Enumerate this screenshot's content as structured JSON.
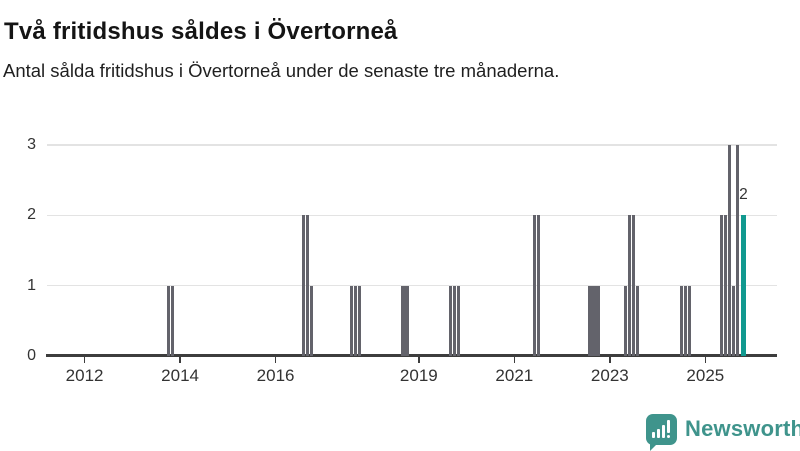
{
  "header": {
    "title": "Två fritidshus såldes i Övertorneå",
    "subtitle": "Antal sålda fritidshus i Övertorneå under de senaste tre månaderna."
  },
  "chart_data": {
    "type": "bar",
    "title": "Två fritidshus såldes i Övertorneå",
    "subtitle": "Antal sålda fritidshus i Övertorneå under de senaste tre månaderna.",
    "xlabel": "",
    "ylabel": "",
    "x_unit": "month",
    "x_domain": [
      "2011-04",
      "2026-06"
    ],
    "ylim": [
      0,
      3
    ],
    "yticks": [
      0,
      1,
      2,
      3
    ],
    "xticks": [
      "2012",
      "2014",
      "2016",
      "2019",
      "2021",
      "2023",
      "2025"
    ],
    "grid": true,
    "legend": false,
    "points": [
      {
        "month": "2013-10",
        "value": 1
      },
      {
        "month": "2013-11",
        "value": 1
      },
      {
        "month": "2016-08",
        "value": 2
      },
      {
        "month": "2016-09",
        "value": 2
      },
      {
        "month": "2016-10",
        "value": 1
      },
      {
        "month": "2017-08",
        "value": 1
      },
      {
        "month": "2017-09",
        "value": 1
      },
      {
        "month": "2017-10",
        "value": 1
      },
      {
        "month": "2018-09",
        "value": 1
      },
      {
        "month": "2018-10",
        "value": 1
      },
      {
        "month": "2019-09",
        "value": 1
      },
      {
        "month": "2019-10",
        "value": 1
      },
      {
        "month": "2019-11",
        "value": 1
      },
      {
        "month": "2021-06",
        "value": 2
      },
      {
        "month": "2021-07",
        "value": 2
      },
      {
        "month": "2022-08",
        "value": 1
      },
      {
        "month": "2022-09",
        "value": 1
      },
      {
        "month": "2022-10",
        "value": 1
      },
      {
        "month": "2023-05",
        "value": 1
      },
      {
        "month": "2023-06",
        "value": 2
      },
      {
        "month": "2023-07",
        "value": 2
      },
      {
        "month": "2023-08",
        "value": 1
      },
      {
        "month": "2024-07",
        "value": 1
      },
      {
        "month": "2024-08",
        "value": 1
      },
      {
        "month": "2024-09",
        "value": 1
      },
      {
        "month": "2025-05",
        "value": 2
      },
      {
        "month": "2025-06",
        "value": 2
      },
      {
        "month": "2025-07",
        "value": 3
      },
      {
        "month": "2025-08",
        "value": 1
      },
      {
        "month": "2025-09",
        "value": 3
      },
      {
        "month": "2025-10",
        "value": 2
      }
    ],
    "highlight_month": "2025-10",
    "annotation": {
      "text": "2"
    },
    "colors": {
      "bar": "#63636b",
      "highlight": "#11998f",
      "gridline": "#e3e3e3",
      "axis": "#3d3d3d",
      "tick_text": "#333333"
    }
  },
  "footer": {
    "brand": "Newsworthy",
    "brand_color": "#3f948c"
  }
}
